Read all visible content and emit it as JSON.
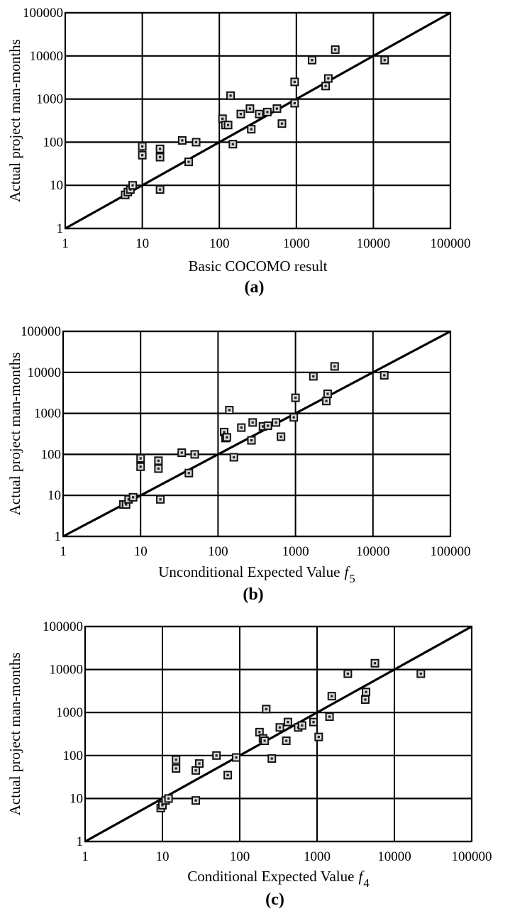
{
  "chart_data": [
    {
      "type": "scatter",
      "panel_label": "(a)",
      "xlabel": "Basic COCOMO result",
      "xlabel_var": "",
      "xlabel_sub": "",
      "ylabel": "Actual project man-months",
      "x_scale": "log",
      "y_scale": "log",
      "xlim": [
        1,
        100000
      ],
      "ylim": [
        1,
        100000
      ],
      "x_ticks": [
        "1",
        "10",
        "100",
        "1000",
        "10000",
        "100000"
      ],
      "y_ticks": [
        "1",
        "10",
        "100",
        "1000",
        "10000",
        "100000"
      ],
      "grid": true,
      "reference_line": {
        "from": [
          1,
          1
        ],
        "to": [
          100000,
          100000
        ]
      },
      "points": [
        [
          6,
          6
        ],
        [
          6.5,
          7
        ],
        [
          7,
          8
        ],
        [
          7.5,
          10
        ],
        [
          10,
          50
        ],
        [
          10,
          80
        ],
        [
          17,
          45
        ],
        [
          17,
          70
        ],
        [
          17,
          8
        ],
        [
          33,
          110
        ],
        [
          40,
          35
        ],
        [
          50,
          100
        ],
        [
          110,
          350
        ],
        [
          120,
          250
        ],
        [
          130,
          250
        ],
        [
          140,
          1200
        ],
        [
          150,
          90
        ],
        [
          190,
          450
        ],
        [
          250,
          600
        ],
        [
          260,
          200
        ],
        [
          330,
          450
        ],
        [
          420,
          500
        ],
        [
          560,
          600
        ],
        [
          650,
          270
        ],
        [
          950,
          800
        ],
        [
          950,
          2500
        ],
        [
          1600,
          8000
        ],
        [
          2400,
          2000
        ],
        [
          2600,
          3000
        ],
        [
          3200,
          14000
        ],
        [
          14000,
          8000
        ]
      ]
    },
    {
      "type": "scatter",
      "panel_label": "(b)",
      "xlabel": "Unconditional Expected Value",
      "xlabel_var": "f",
      "xlabel_sub": "5",
      "ylabel": "Actual project man-months",
      "x_scale": "log",
      "y_scale": "log",
      "xlim": [
        1,
        100000
      ],
      "ylim": [
        1,
        100000
      ],
      "x_ticks": [
        "1",
        "10",
        "100",
        "1000",
        "10000",
        "100000"
      ],
      "y_ticks": [
        "1",
        "10",
        "100",
        "1000",
        "10000",
        "100000"
      ],
      "grid": true,
      "reference_line": {
        "from": [
          1,
          1
        ],
        "to": [
          100000,
          100000
        ]
      },
      "points": [
        [
          6,
          6
        ],
        [
          6.5,
          6
        ],
        [
          7,
          8
        ],
        [
          8,
          9
        ],
        [
          10,
          50
        ],
        [
          10,
          80
        ],
        [
          17,
          45
        ],
        [
          17,
          70
        ],
        [
          18,
          8
        ],
        [
          34,
          110
        ],
        [
          42,
          35
        ],
        [
          50,
          100
        ],
        [
          120,
          350
        ],
        [
          125,
          250
        ],
        [
          130,
          260
        ],
        [
          140,
          1200
        ],
        [
          160,
          85
        ],
        [
          200,
          450
        ],
        [
          270,
          220
        ],
        [
          280,
          600
        ],
        [
          380,
          480
        ],
        [
          440,
          500
        ],
        [
          560,
          600
        ],
        [
          650,
          270
        ],
        [
          950,
          800
        ],
        [
          1000,
          2400
        ],
        [
          1700,
          8000
        ],
        [
          2500,
          2000
        ],
        [
          2600,
          3000
        ],
        [
          3200,
          14000
        ],
        [
          14000,
          8500
        ]
      ]
    },
    {
      "type": "scatter",
      "panel_label": "(c)",
      "xlabel": "Conditional Expected Value",
      "xlabel_var": "f",
      "xlabel_sub": "4",
      "ylabel": "Actual project man-months",
      "x_scale": "log",
      "y_scale": "log",
      "xlim": [
        1,
        100000
      ],
      "ylim": [
        1,
        100000
      ],
      "x_ticks": [
        "1",
        "10",
        "100",
        "1000",
        "10000",
        "100000"
      ],
      "y_ticks": [
        "1",
        "10",
        "100",
        "1000",
        "10000",
        "100000"
      ],
      "grid": true,
      "reference_line": {
        "from": [
          1,
          1
        ],
        "to": [
          100000,
          100000
        ]
      },
      "points": [
        [
          9.5,
          6
        ],
        [
          10,
          7
        ],
        [
          11,
          9
        ],
        [
          12,
          10
        ],
        [
          15,
          50
        ],
        [
          15,
          80
        ],
        [
          27,
          45
        ],
        [
          27,
          9
        ],
        [
          30,
          65
        ],
        [
          50,
          100
        ],
        [
          70,
          35
        ],
        [
          90,
          90
        ],
        [
          180,
          350
        ],
        [
          200,
          250
        ],
        [
          210,
          220
        ],
        [
          220,
          1200
        ],
        [
          260,
          85
        ],
        [
          330,
          450
        ],
        [
          400,
          220
        ],
        [
          420,
          600
        ],
        [
          570,
          450
        ],
        [
          640,
          500
        ],
        [
          900,
          600
        ],
        [
          1050,
          270
        ],
        [
          1450,
          800
        ],
        [
          1550,
          2400
        ],
        [
          2500,
          8000
        ],
        [
          4200,
          2000
        ],
        [
          4300,
          3000
        ],
        [
          5600,
          14000
        ],
        [
          22000,
          8000
        ]
      ]
    }
  ]
}
